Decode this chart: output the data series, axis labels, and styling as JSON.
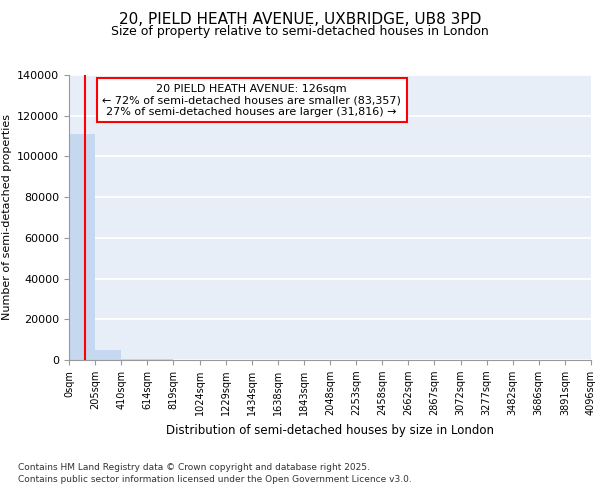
{
  "title_line1": "20, PIELD HEATH AVENUE, UXBRIDGE, UB8 3PD",
  "title_line2": "Size of property relative to semi-detached houses in London",
  "xlabel": "Distribution of semi-detached houses by size in London",
  "ylabel": "Number of semi-detached properties",
  "footer_line1": "Contains HM Land Registry data © Crown copyright and database right 2025.",
  "footer_line2": "Contains public sector information licensed under the Open Government Licence v3.0.",
  "annotation_line1": "20 PIELD HEATH AVENUE: 126sqm",
  "annotation_line2": "← 72% of semi-detached houses are smaller (83,357)",
  "annotation_line3": "27% of semi-detached houses are larger (31,816) →",
  "bar_edges": [
    0,
    205,
    410,
    614,
    819,
    1024,
    1229,
    1434,
    1638,
    1843,
    2048,
    2253,
    2458,
    2662,
    2867,
    3072,
    3277,
    3482,
    3686,
    3891,
    4096
  ],
  "bar_heights": [
    111000,
    5000,
    700,
    250,
    120,
    80,
    55,
    40,
    30,
    22,
    17,
    13,
    10,
    8,
    6,
    5,
    4,
    3,
    2,
    2
  ],
  "bar_color": "#c5d8f0",
  "vline_color": "red",
  "vline_x": 126,
  "ylim": [
    0,
    140000
  ],
  "yticks": [
    0,
    20000,
    40000,
    60000,
    80000,
    100000,
    120000,
    140000
  ],
  "bg_color": "#e8eef8",
  "grid_color": "#ffffff",
  "annotation_box_facecolor": "white",
  "annotation_box_edgecolor": "red"
}
